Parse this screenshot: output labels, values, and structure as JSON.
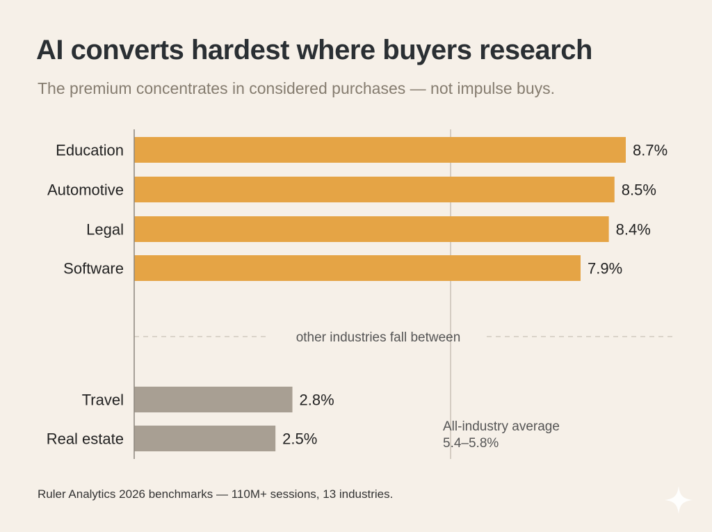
{
  "title": "AI converts hardest where buyers research",
  "subtitle": "The premium concentrates in considered purchases — not impulse buys.",
  "source": "Ruler Analytics 2026 benchmarks — 110M+ sessions, 13 industries.",
  "colors": {
    "high": "#e5a445",
    "low": "#a89f93",
    "axis": "#8c857c",
    "divider": "#c9c1b6",
    "label": "#222222",
    "note": "#555555"
  },
  "chart_data": {
    "type": "bar",
    "orientation": "horizontal",
    "unit": "%",
    "xlim": [
      0,
      9.0
    ],
    "groups": [
      {
        "name": "high",
        "categories": [
          "Education",
          "Automotive",
          "Legal",
          "Software"
        ],
        "values": [
          8.7,
          8.5,
          8.4,
          7.9
        ],
        "labels": [
          "8.7%",
          "8.5%",
          "8.4%",
          "7.9%"
        ]
      },
      {
        "name": "low",
        "categories": [
          "Travel",
          "Real estate"
        ],
        "values": [
          2.8,
          2.5
        ],
        "labels": [
          "2.8%",
          "2.5%"
        ]
      }
    ],
    "divider_label": "other industries fall between",
    "reference_line": {
      "value": 5.6,
      "label_line1": "All-industry average",
      "label_line2": "5.4–5.8%"
    }
  }
}
